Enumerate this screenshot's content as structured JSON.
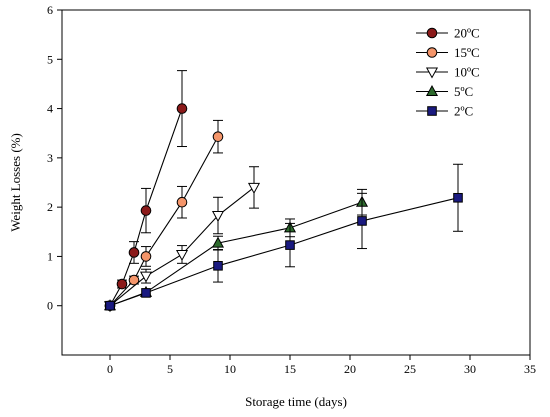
{
  "chart_data": {
    "type": "line",
    "title": "",
    "xlabel": "Storage time (days)",
    "ylabel": "Weight Losses (%)",
    "xlim": [
      -4,
      35
    ],
    "ylim": [
      -1,
      6
    ],
    "xticks": [
      0,
      5,
      10,
      15,
      20,
      25,
      30,
      35
    ],
    "yticks": [
      0,
      1,
      2,
      3,
      4,
      5,
      6
    ],
    "grid": false,
    "legend_position": "top-right",
    "series": [
      {
        "name": "20ºC",
        "marker": "circle",
        "color": "#8b1a1a",
        "x": [
          0,
          1,
          2,
          3,
          6
        ],
        "y": [
          0,
          0.44,
          1.08,
          1.93,
          4.0
        ],
        "err": [
          0.03,
          0.08,
          0.22,
          0.45,
          0.77
        ]
      },
      {
        "name": "15ºC",
        "marker": "circle",
        "color": "#f4956a",
        "x": [
          0,
          2,
          3,
          6,
          9
        ],
        "y": [
          0,
          0.52,
          1.0,
          2.1,
          3.43
        ],
        "err": [
          0.03,
          0.08,
          0.2,
          0.32,
          0.33
        ]
      },
      {
        "name": "10ºC",
        "marker": "triangle-down",
        "color": "#ffffff",
        "x": [
          0,
          3,
          6,
          9,
          12
        ],
        "y": [
          0,
          0.6,
          1.04,
          1.83,
          2.4
        ],
        "err": [
          0.03,
          0.14,
          0.18,
          0.37,
          0.42
        ]
      },
      {
        "name": "5ºC",
        "marker": "triangle-up",
        "color": "#2e6b2e",
        "x": [
          0,
          3,
          9,
          15,
          21
        ],
        "y": [
          0,
          0.27,
          1.27,
          1.58,
          2.1
        ],
        "err": [
          0.03,
          0.05,
          0.14,
          0.18,
          0.26
        ]
      },
      {
        "name": "2ºC",
        "marker": "square",
        "color": "#1a1a80",
        "x": [
          0,
          3,
          9,
          15,
          21,
          29
        ],
        "y": [
          0,
          0.26,
          0.81,
          1.23,
          1.72,
          2.19
        ],
        "err": [
          0.03,
          0.05,
          0.33,
          0.44,
          0.56,
          0.68
        ]
      }
    ]
  }
}
